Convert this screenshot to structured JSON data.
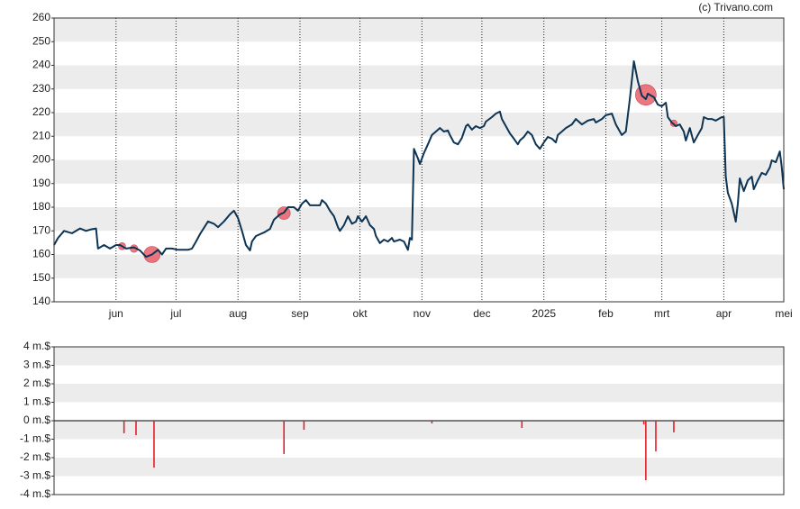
{
  "credit": "(c) Trivano.com",
  "chart_data": [
    {
      "type": "line",
      "color": "#0e3454",
      "bands": true,
      "x": [
        0,
        2,
        5,
        9,
        13,
        16,
        18,
        21,
        22,
        25,
        28,
        31,
        33,
        36,
        40,
        43,
        46,
        49,
        52,
        54,
        56,
        59,
        62,
        64,
        67,
        69,
        71,
        73,
        77,
        80,
        82,
        85,
        88,
        90,
        92,
        94,
        96,
        98,
        99,
        101,
        105,
        108,
        110,
        113,
        115,
        117,
        120,
        122,
        124,
        126,
        128,
        131,
        133,
        134,
        136,
        138,
        140,
        142,
        143,
        145,
        147,
        149,
        151,
        152,
        154,
        156,
        158,
        160,
        161,
        163,
        165,
        167,
        169,
        170,
        173,
        175,
        177,
        178,
        179,
        180,
        182,
        183,
        185,
        187,
        189,
        191,
        193,
        195,
        197,
        198,
        200,
        202,
        204,
        206,
        207,
        209,
        211,
        213,
        215,
        216,
        219,
        221,
        223,
        224,
        226,
        228,
        230,
        232,
        233,
        235,
        237,
        239,
        241,
        243,
        245,
        247,
        249,
        251,
        252,
        254,
        256,
        259,
        261,
        264,
        267,
        270,
        271,
        274,
        276,
        279,
        281,
        284,
        286,
        288,
        290,
        292,
        294,
        296,
        297,
        300,
        302,
        304,
        306,
        307,
        309,
        311,
        313,
        315,
        316,
        318,
        320,
        322,
        324,
        325,
        327,
        329,
        331,
        334,
        335,
        336,
        337,
        339,
        341,
        342,
        343,
        345,
        347,
        349,
        350,
        352,
        354,
        356,
        358,
        359,
        361,
        363,
        364,
        365
      ],
      "values": [
        164,
        167,
        170,
        169,
        171,
        170,
        170.5,
        171,
        162.5,
        164,
        162.5,
        164,
        164,
        162.5,
        163,
        161.7,
        159,
        160,
        162,
        160,
        162.5,
        162.5,
        162,
        162,
        162,
        162.5,
        165.5,
        168.6,
        174,
        173,
        171.6,
        174,
        177,
        178.5,
        175.4,
        170,
        164,
        161.7,
        165.5,
        167.8,
        169.3,
        170.8,
        174.7,
        177,
        177.7,
        180,
        180,
        178.5,
        181.5,
        183,
        180.8,
        180.8,
        180.8,
        183,
        181.5,
        178.5,
        176.2,
        171.6,
        170,
        172.4,
        176.2,
        173,
        173.9,
        176.2,
        173.9,
        176.2,
        172.4,
        170.8,
        167.8,
        164.8,
        166.3,
        165.5,
        167,
        165.5,
        166.3,
        165.5,
        162,
        167,
        166.3,
        204.7,
        200.6,
        198.3,
        202.8,
        206.6,
        210.5,
        212,
        213.5,
        212,
        212.4,
        210.5,
        207.4,
        206.6,
        209.3,
        214.3,
        215,
        212.8,
        214.3,
        213.5,
        214.3,
        216.2,
        218.1,
        219.6,
        220.4,
        217.3,
        214.3,
        211.2,
        209,
        206.6,
        208.2,
        209.7,
        212,
        210.5,
        206.6,
        204.7,
        207.4,
        209.7,
        209,
        207.4,
        210.5,
        212,
        213.5,
        215,
        217.3,
        215,
        216.6,
        217.3,
        215.8,
        217.3,
        218.9,
        219.6,
        215,
        210.5,
        212,
        225.7,
        241.7,
        233.3,
        227.2,
        225.7,
        228,
        226.5,
        223.4,
        222.7,
        224.2,
        218.1,
        215.8,
        214.3,
        215,
        212,
        208.2,
        213.5,
        207.4,
        210.5,
        213.5,
        218.1,
        217.3,
        217.3,
        216.6,
        218.1,
        218.1,
        192.9,
        186.1,
        181.5,
        173.9,
        181.5,
        192.2,
        186.8,
        191.4,
        192.9,
        187.6,
        191.4,
        194.5,
        193.7,
        196.8,
        199.8,
        199,
        203.6,
        196.8,
        187.6
      ],
      "markers": {
        "color": "#e8606a",
        "x": [
          34,
          40,
          49,
          115,
          296,
          310
        ],
        "values": [
          163.5,
          162.5,
          160,
          177.5,
          227.5,
          215.5
        ],
        "sizes": [
          0.7,
          0.8,
          2.5,
          1.8,
          3.4,
          0.6
        ]
      },
      "xlim": [
        0,
        365
      ],
      "xticks": [
        {
          "value": 31,
          "label": "jun"
        },
        {
          "value": 61,
          "label": "jul"
        },
        {
          "value": 92,
          "label": "aug"
        },
        {
          "value": 123,
          "label": "sep"
        },
        {
          "value": 153,
          "label": "okt"
        },
        {
          "value": 184,
          "label": "nov"
        },
        {
          "value": 214,
          "label": "dec"
        },
        {
          "value": 245,
          "label": "2025"
        },
        {
          "value": 276,
          "label": "feb"
        },
        {
          "value": 304,
          "label": "mrt"
        },
        {
          "value": 335,
          "label": "apr"
        },
        {
          "value": 365,
          "label": "mei"
        }
      ],
      "ylim": [
        140,
        260
      ],
      "yticks": [
        140,
        150,
        160,
        170,
        180,
        190,
        200,
        210,
        220,
        230,
        240,
        250,
        260
      ]
    },
    {
      "type": "bar",
      "color": "#e0202a",
      "bands": true,
      "x": [
        35,
        41,
        50,
        115,
        125,
        189,
        234,
        295,
        296,
        301,
        310
      ],
      "values": [
        -0.68,
        -0.78,
        -2.54,
        -1.8,
        -0.49,
        -0.15,
        -0.39,
        -0.2,
        -3.22,
        -1.66,
        -0.63
      ],
      "xlim": [
        0,
        365
      ],
      "ylim": [
        -4,
        4
      ],
      "yticks": [
        {
          "value": -4,
          "label": "-4 m.$"
        },
        {
          "value": -3,
          "label": "-3 m.$"
        },
        {
          "value": -2,
          "label": "-2 m.$"
        },
        {
          "value": -1,
          "label": "-1 m.$"
        },
        {
          "value": 0,
          "label": "0 m.$"
        },
        {
          "value": 1,
          "label": "1 m.$"
        },
        {
          "value": 2,
          "label": "2 m.$"
        },
        {
          "value": 3,
          "label": "3 m.$"
        },
        {
          "value": 4,
          "label": "4 m.$"
        }
      ]
    }
  ]
}
